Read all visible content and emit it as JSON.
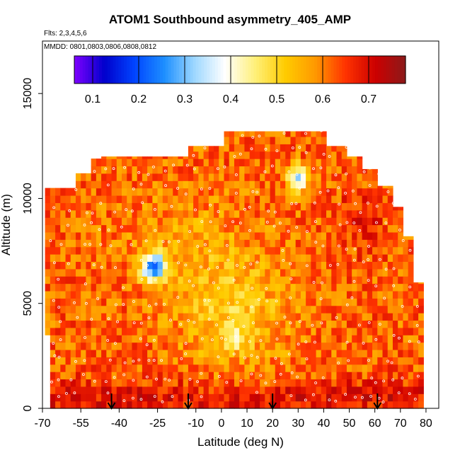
{
  "title": "ATOM1 Southbound asymmetry_405_AMP",
  "flights_label": "Flts: 2,3,4,5,6",
  "dates_label": "MMDD: 0801,0803,0806,0808,0812",
  "chart_data": {
    "type": "heatmap",
    "xlabel": "Latitude (deg N)",
    "ylabel": "Altitude (m)",
    "xlim": [
      -70,
      85
    ],
    "ylim": [
      0,
      17500
    ],
    "x_ticks": [
      -70,
      -55,
      -40,
      -25,
      -10,
      0,
      10,
      20,
      30,
      40,
      50,
      60,
      70,
      80
    ],
    "x_tick_labels": [
      "-70",
      "-55",
      "-40",
      "-25",
      "-10",
      "0",
      "10",
      "20",
      "30",
      "40",
      "50",
      "60",
      "70",
      "80"
    ],
    "y_ticks": [
      0,
      5000,
      10000,
      15000
    ],
    "y_tick_labels": [
      "0",
      "5000",
      "10000",
      "15000"
    ],
    "colorbar": {
      "range": [
        0.06,
        0.78
      ],
      "ticks": [
        0.1,
        0.2,
        0.3,
        0.4,
        0.5,
        0.6,
        0.7
      ],
      "tick_labels": [
        "0.1",
        "0.2",
        "0.3",
        "0.4",
        "0.5",
        "0.6",
        "0.7"
      ],
      "colors": [
        "#7f00ff",
        "#0000cc",
        "#0044ff",
        "#1e90ff",
        "#9fd8ff",
        "#ffffff",
        "#fff07a",
        "#ffcc00",
        "#ff9900",
        "#ff3300",
        "#cc0000",
        "#8b1a1a"
      ]
    },
    "arrow_latitudes": [
      -43,
      -13,
      20,
      61
    ],
    "low_value_regions": [
      {
        "lat": -25,
        "alt": 6800,
        "value": 0.28
      },
      {
        "lat": 30,
        "alt": 11000,
        "value": 0.3
      },
      {
        "lat": -28,
        "alt": 6600,
        "value": 0.38
      },
      {
        "lat": 5,
        "alt": 3500,
        "value": 0.45
      }
    ],
    "grid": false
  }
}
